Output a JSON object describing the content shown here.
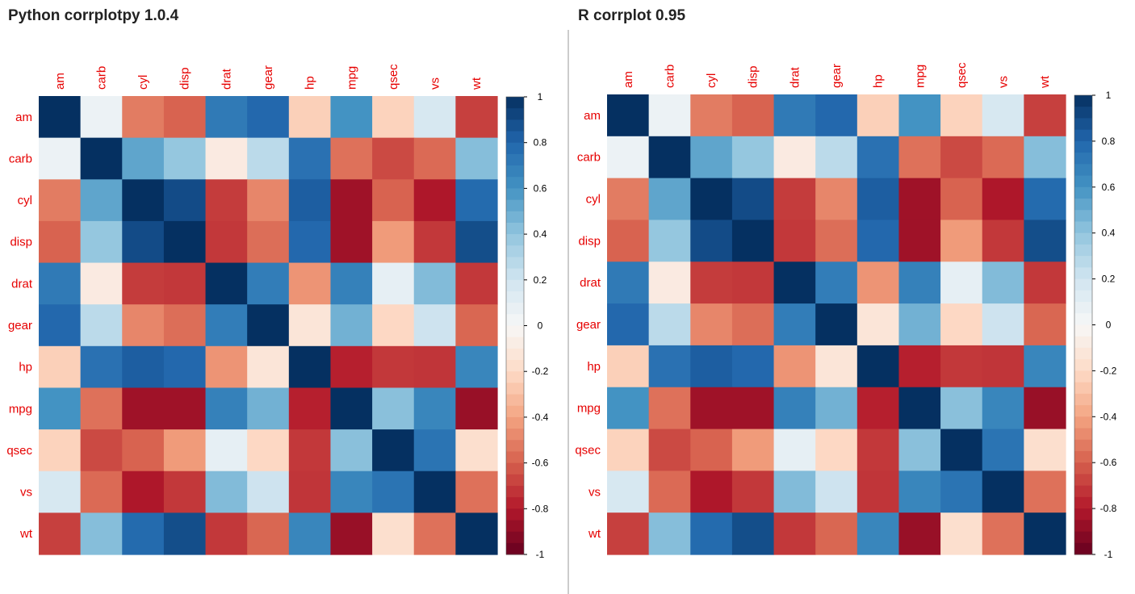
{
  "chart_data": [
    {
      "type": "heatmap",
      "title": "Python corrplotpy 1.0.4",
      "variables": [
        "am",
        "carb",
        "cyl",
        "disp",
        "drat",
        "gear",
        "hp",
        "mpg",
        "qsec",
        "vs",
        "wt"
      ],
      "matrix": [
        [
          1.0,
          0.06,
          -0.52,
          -0.59,
          0.71,
          0.79,
          -0.24,
          0.6,
          -0.23,
          0.17,
          -0.69
        ],
        [
          0.06,
          1.0,
          0.53,
          0.39,
          -0.09,
          0.27,
          0.75,
          -0.55,
          -0.66,
          -0.57,
          0.43
        ],
        [
          -0.52,
          0.53,
          1.0,
          0.9,
          -0.7,
          -0.49,
          0.83,
          -0.85,
          -0.59,
          -0.81,
          0.78
        ],
        [
          -0.59,
          0.39,
          0.9,
          1.0,
          -0.71,
          -0.56,
          0.79,
          -0.85,
          -0.43,
          -0.71,
          0.89
        ],
        [
          0.71,
          -0.09,
          -0.7,
          -0.71,
          1.0,
          0.7,
          -0.45,
          0.68,
          0.09,
          0.44,
          -0.71
        ],
        [
          0.79,
          0.27,
          -0.49,
          -0.56,
          0.7,
          1.0,
          -0.13,
          0.48,
          -0.21,
          0.21,
          -0.58
        ],
        [
          -0.24,
          0.75,
          0.83,
          0.79,
          -0.45,
          -0.13,
          1.0,
          -0.78,
          -0.71,
          -0.72,
          0.66
        ],
        [
          0.6,
          -0.55,
          -0.85,
          -0.85,
          0.68,
          0.48,
          -0.78,
          1.0,
          0.42,
          0.66,
          -0.87
        ],
        [
          -0.23,
          -0.66,
          -0.59,
          -0.43,
          0.09,
          -0.21,
          -0.71,
          0.42,
          1.0,
          0.74,
          -0.17
        ],
        [
          0.17,
          -0.57,
          -0.81,
          -0.71,
          0.44,
          0.21,
          -0.72,
          0.66,
          0.74,
          1.0,
          -0.55
        ],
        [
          -0.69,
          0.43,
          0.78,
          0.89,
          -0.71,
          -0.58,
          0.66,
          -0.87,
          -0.17,
          -0.55,
          1.0
        ]
      ],
      "colorbar_ticks": [
        "1",
        "0.8",
        "0.6",
        "0.4",
        "0.2",
        "0",
        "-0.2",
        "-0.4",
        "-0.6",
        "-0.8",
        "-1"
      ],
      "range": [
        -1,
        1
      ],
      "colormap": "RdBu",
      "label_color": "#e60000",
      "x_labels_rotation": "vertical, top",
      "legend_placement": "right"
    },
    {
      "type": "heatmap",
      "title": "R corrplot 0.95",
      "variables": [
        "am",
        "carb",
        "cyl",
        "disp",
        "drat",
        "gear",
        "hp",
        "mpg",
        "qsec",
        "vs",
        "wt"
      ],
      "matrix": [
        [
          1.0,
          0.06,
          -0.52,
          -0.59,
          0.71,
          0.79,
          -0.24,
          0.6,
          -0.23,
          0.17,
          -0.69
        ],
        [
          0.06,
          1.0,
          0.53,
          0.39,
          -0.09,
          0.27,
          0.75,
          -0.55,
          -0.66,
          -0.57,
          0.43
        ],
        [
          -0.52,
          0.53,
          1.0,
          0.9,
          -0.7,
          -0.49,
          0.83,
          -0.85,
          -0.59,
          -0.81,
          0.78
        ],
        [
          -0.59,
          0.39,
          0.9,
          1.0,
          -0.71,
          -0.56,
          0.79,
          -0.85,
          -0.43,
          -0.71,
          0.89
        ],
        [
          0.71,
          -0.09,
          -0.7,
          -0.71,
          1.0,
          0.7,
          -0.45,
          0.68,
          0.09,
          0.44,
          -0.71
        ],
        [
          0.79,
          0.27,
          -0.49,
          -0.56,
          0.7,
          1.0,
          -0.13,
          0.48,
          -0.21,
          0.21,
          -0.58
        ],
        [
          -0.24,
          0.75,
          0.83,
          0.79,
          -0.45,
          -0.13,
          1.0,
          -0.78,
          -0.71,
          -0.72,
          0.66
        ],
        [
          0.6,
          -0.55,
          -0.85,
          -0.85,
          0.68,
          0.48,
          -0.78,
          1.0,
          0.42,
          0.66,
          -0.87
        ],
        [
          -0.23,
          -0.66,
          -0.59,
          -0.43,
          0.09,
          -0.21,
          -0.71,
          0.42,
          1.0,
          0.74,
          -0.17
        ],
        [
          0.17,
          -0.57,
          -0.81,
          -0.71,
          0.44,
          0.21,
          -0.72,
          0.66,
          0.74,
          1.0,
          -0.55
        ],
        [
          -0.69,
          0.43,
          0.78,
          0.89,
          -0.71,
          -0.58,
          0.66,
          -0.87,
          -0.17,
          -0.55,
          1.0
        ]
      ],
      "colorbar_ticks": [
        "1",
        "0.8",
        "0.6",
        "0.4",
        "0.2",
        "0",
        "-0.2",
        "-0.4",
        "-0.6",
        "-0.8",
        "-1"
      ],
      "range": [
        -1,
        1
      ],
      "colormap": "RdBu",
      "label_color": "#e60000",
      "x_labels_rotation": "vertical, top",
      "legend_placement": "right"
    }
  ]
}
